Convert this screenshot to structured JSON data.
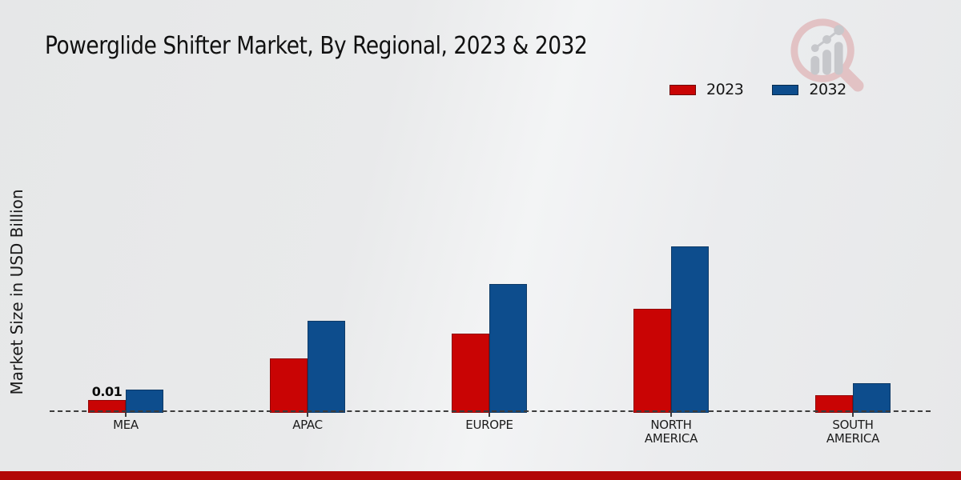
{
  "title": "Powerglide Shifter Market, By Regional, 2023 & 2032",
  "y_axis_title": "Market Size in USD Billion",
  "legend": {
    "items": [
      {
        "label": "2023",
        "color": "#c90404"
      },
      {
        "label": "2032",
        "color": "#0d4d8d"
      }
    ]
  },
  "watermark_icon": "magnifier-bar-chart-logo",
  "colors": {
    "series_2023": "#c90404",
    "series_2032": "#0d4d8d",
    "footer_bar": "#b20707",
    "baseline": "#3d3d3d",
    "background": "#eaebec"
  },
  "chart_data": {
    "type": "bar",
    "title": "Powerglide Shifter Market, By Regional, 2023 & 2032",
    "xlabel": "",
    "ylabel": "Market Size in USD Billion",
    "categories": [
      "MEA",
      "APAC",
      "EUROPE",
      "NORTH\nAMERICA",
      "SOUTH\nAMERICA"
    ],
    "series": [
      {
        "name": "2023",
        "color": "#c90404",
        "values": [
          0.01,
          0.044,
          0.064,
          0.084,
          0.014
        ]
      },
      {
        "name": "2032",
        "color": "#0d4d8d",
        "values": [
          0.019,
          0.074,
          0.104,
          0.134,
          0.024
        ]
      }
    ],
    "ylim": [
      0,
      0.14
    ],
    "grid": false,
    "axis_line": "dashed",
    "legend_position": "top-right",
    "annotations": [
      {
        "series": "2023",
        "category": "MEA",
        "text": "0.01"
      }
    ]
  }
}
